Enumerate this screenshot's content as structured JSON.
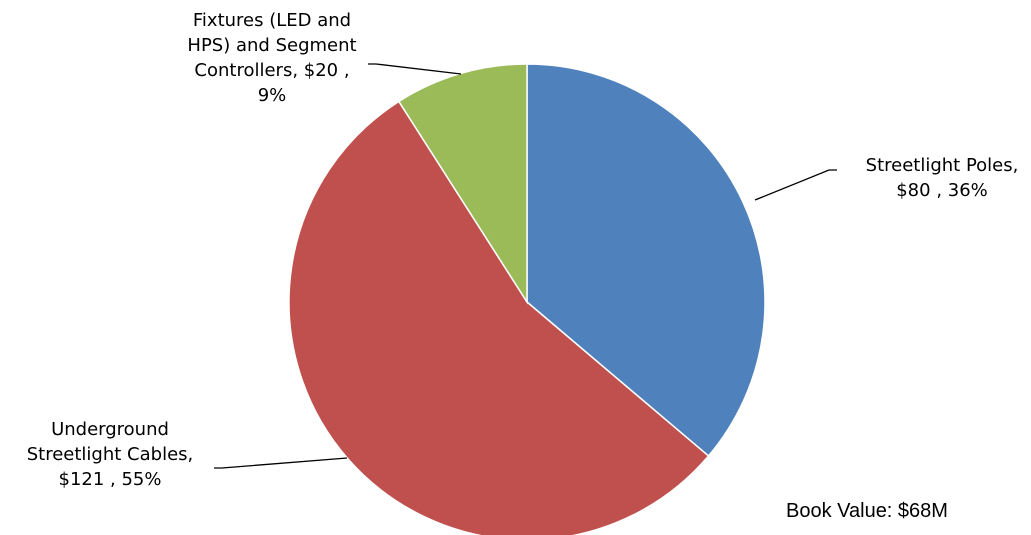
{
  "chart_data": {
    "type": "pie",
    "units": "$M",
    "start_angle": "12 o'clock",
    "direction": "clockwise",
    "slices": [
      {
        "name": "Streetlight Poles",
        "value": 80,
        "percent": 36,
        "color": "#4F81BD",
        "label_lines": [
          "Streetlight Poles,",
          "$80 , 36%"
        ]
      },
      {
        "name": "Underground Streetlight Cables",
        "value": 121,
        "percent": 55,
        "color": "#C0504D",
        "label_lines": [
          "Underground",
          "Streetlight Cables,",
          "$121 , 55%"
        ]
      },
      {
        "name": "Fixtures (LED and HPS) and Segment Controllers",
        "value": 20,
        "percent": 9,
        "color": "#9BBB59",
        "label_lines": [
          "Fixtures (LED and",
          "HPS) and Segment",
          "Controllers, $20 ,",
          "9%"
        ]
      }
    ]
  },
  "note": "Book Value: $68M"
}
